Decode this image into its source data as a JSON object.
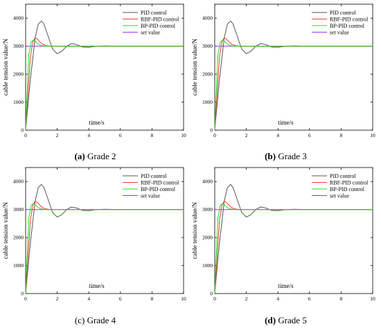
{
  "chart_data": [
    {
      "type": "line",
      "caption": {
        "letter": "(a)",
        "text": "Grade 2"
      },
      "xlabel": "time/s",
      "ylabel": "cable tension value/N",
      "xlim": [
        0,
        10
      ],
      "ylim": [
        0,
        4500
      ],
      "xticks": [
        "0",
        "2",
        "4",
        "6",
        "8",
        "10"
      ],
      "yticks": [
        "0",
        "1000",
        "2000",
        "3000",
        "4000"
      ],
      "grid": false,
      "legend_position": "top-right",
      "series": [
        {
          "name": "PID control",
          "color": "#555555",
          "x": [
            0,
            0.3,
            0.6,
            0.8,
            1.0,
            1.15,
            1.4,
            1.7,
            2.0,
            2.3,
            2.6,
            2.9,
            3.2,
            3.6,
            4.0,
            4.5,
            5.0,
            6.0,
            10.0
          ],
          "y": [
            0,
            1800,
            3300,
            3780,
            3900,
            3800,
            3400,
            2900,
            2730,
            2820,
            3000,
            3090,
            3060,
            2970,
            2960,
            3000,
            3010,
            3000,
            3000
          ]
        },
        {
          "name": "RBF-PID control",
          "color": "#e8412b",
          "x": [
            0,
            0.15,
            0.3,
            0.45,
            0.6,
            0.75,
            0.9,
            1.1,
            1.3,
            1.6,
            2.0,
            10.0
          ],
          "y": [
            0,
            1300,
            2600,
            3150,
            3300,
            3250,
            3150,
            3060,
            3020,
            3000,
            3000,
            3000
          ]
        },
        {
          "name": "BP-PID control",
          "color": "#22dd22",
          "x": [
            0,
            0.1,
            0.2,
            0.35,
            0.5,
            0.65,
            0.8,
            1.0,
            1.3,
            10.0
          ],
          "y": [
            0,
            1400,
            2700,
            3150,
            3220,
            3150,
            3070,
            3020,
            3000,
            3000
          ]
        },
        {
          "name": "set value",
          "color": "#9933ee",
          "x": [
            0,
            10
          ],
          "y": [
            3000,
            3000
          ]
        }
      ]
    },
    {
      "type": "line",
      "caption": {
        "letter": "(b)",
        "text": "Grade 3"
      },
      "xlabel": "time/s",
      "ylabel": "cable tension value/N",
      "xlim": [
        0,
        10
      ],
      "ylim": [
        0,
        4500
      ],
      "xticks": [
        "0",
        "2",
        "4",
        "6",
        "8",
        "10"
      ],
      "yticks": [
        "0",
        "1000",
        "2000",
        "3000",
        "4000"
      ],
      "grid": false,
      "legend_position": "top-right",
      "series": [
        {
          "name": "PID control",
          "color": "#555555",
          "x": [
            0,
            0.3,
            0.6,
            0.8,
            1.0,
            1.15,
            1.4,
            1.7,
            2.0,
            2.3,
            2.6,
            2.9,
            3.2,
            3.6,
            4.0,
            4.5,
            5.0,
            6.0,
            10.0
          ],
          "y": [
            0,
            1800,
            3300,
            3780,
            3900,
            3800,
            3400,
            2900,
            2730,
            2820,
            3000,
            3090,
            3060,
            2970,
            2960,
            3000,
            3010,
            3000,
            3000
          ]
        },
        {
          "name": "RBF-PID control",
          "color": "#e8412b",
          "x": [
            0,
            0.15,
            0.3,
            0.45,
            0.6,
            0.75,
            0.9,
            1.1,
            1.3,
            1.6,
            2.0,
            10.0
          ],
          "y": [
            0,
            1300,
            2600,
            3150,
            3300,
            3250,
            3150,
            3060,
            3020,
            3000,
            3000,
            3000
          ]
        },
        {
          "name": "BP-PID control",
          "color": "#22dd22",
          "x": [
            0,
            0.1,
            0.2,
            0.35,
            0.5,
            0.65,
            0.8,
            1.0,
            1.3,
            10.0
          ],
          "y": [
            0,
            1400,
            2700,
            3150,
            3220,
            3150,
            3070,
            3020,
            3000,
            3000
          ]
        },
        {
          "name": "set value",
          "color": "#9933ee",
          "x": [
            0,
            10
          ],
          "y": [
            3000,
            3000
          ]
        }
      ]
    },
    {
      "type": "line",
      "caption": {
        "letter": "(c)",
        "text": "Grade 4"
      },
      "xlabel": "time/s",
      "ylabel": "cable tension value/N",
      "xlim": [
        0,
        10
      ],
      "ylim": [
        0,
        4500
      ],
      "xticks": [
        "0",
        "2",
        "4",
        "6",
        "8",
        "10"
      ],
      "yticks": [
        "0",
        "1000",
        "2000",
        "3000",
        "4000"
      ],
      "grid": false,
      "legend_position": "top-right",
      "series": [
        {
          "name": "PID control",
          "color": "#555555",
          "x": [
            0,
            0.3,
            0.6,
            0.8,
            1.0,
            1.15,
            1.4,
            1.7,
            2.0,
            2.3,
            2.6,
            2.9,
            3.2,
            3.6,
            4.0,
            4.5,
            5.0,
            6.0,
            10.0
          ],
          "y": [
            0,
            1800,
            3300,
            3780,
            3900,
            3800,
            3400,
            2900,
            2730,
            2820,
            3000,
            3090,
            3060,
            2970,
            2960,
            3000,
            3010,
            3000,
            3000
          ]
        },
        {
          "name": "RBF-PID control",
          "color": "#e8412b",
          "x": [
            0,
            0.15,
            0.3,
            0.45,
            0.6,
            0.75,
            0.9,
            1.1,
            1.3,
            1.6,
            2.0,
            10.0
          ],
          "y": [
            0,
            1300,
            2600,
            3150,
            3300,
            3250,
            3150,
            3060,
            3020,
            3000,
            3000,
            3000
          ]
        },
        {
          "name": "BP-PID control",
          "color": "#22dd22",
          "x": [
            0,
            0.1,
            0.2,
            0.35,
            0.5,
            0.65,
            0.8,
            1.0,
            1.3,
            10.0
          ],
          "y": [
            0,
            1400,
            2700,
            3150,
            3220,
            3150,
            3070,
            3020,
            3000,
            3000
          ]
        },
        {
          "name": "set value",
          "color": "#9933ee",
          "x": [
            0,
            10
          ],
          "y": [
            3000,
            3000
          ]
        }
      ]
    },
    {
      "type": "line",
      "caption": {
        "letter": "(d)",
        "text": "Grade 5"
      },
      "xlabel": "time/s",
      "ylabel": "cable tension value/N",
      "xlim": [
        0,
        10
      ],
      "ylim": [
        0,
        4500
      ],
      "xticks": [
        "0",
        "2",
        "4",
        "6",
        "8",
        "10"
      ],
      "yticks": [
        "0",
        "1000",
        "2000",
        "3000",
        "4000"
      ],
      "grid": false,
      "legend_position": "top-right",
      "series": [
        {
          "name": "PID control",
          "color": "#555555",
          "x": [
            0,
            0.3,
            0.6,
            0.8,
            1.0,
            1.15,
            1.4,
            1.7,
            2.0,
            2.3,
            2.6,
            2.9,
            3.2,
            3.6,
            4.0,
            4.5,
            5.0,
            6.0,
            10.0
          ],
          "y": [
            0,
            1800,
            3300,
            3780,
            3900,
            3800,
            3400,
            2900,
            2730,
            2820,
            3000,
            3090,
            3060,
            2970,
            2960,
            3000,
            3010,
            3000,
            3000
          ]
        },
        {
          "name": "RBF-PID control",
          "color": "#e8412b",
          "x": [
            0,
            0.15,
            0.3,
            0.45,
            0.6,
            0.75,
            0.9,
            1.1,
            1.3,
            1.6,
            2.0,
            10.0
          ],
          "y": [
            0,
            1300,
            2600,
            3150,
            3300,
            3250,
            3150,
            3060,
            3020,
            3000,
            3000,
            3000
          ]
        },
        {
          "name": "BP-PID control",
          "color": "#22dd22",
          "x": [
            0,
            0.1,
            0.2,
            0.35,
            0.5,
            0.65,
            0.8,
            1.0,
            1.3,
            10.0
          ],
          "y": [
            0,
            1400,
            2700,
            3150,
            3220,
            3150,
            3070,
            3020,
            3000,
            3000
          ]
        },
        {
          "name": "set value",
          "color": "#9933ee",
          "x": [
            0,
            10
          ],
          "y": [
            3000,
            3000
          ]
        }
      ]
    }
  ]
}
